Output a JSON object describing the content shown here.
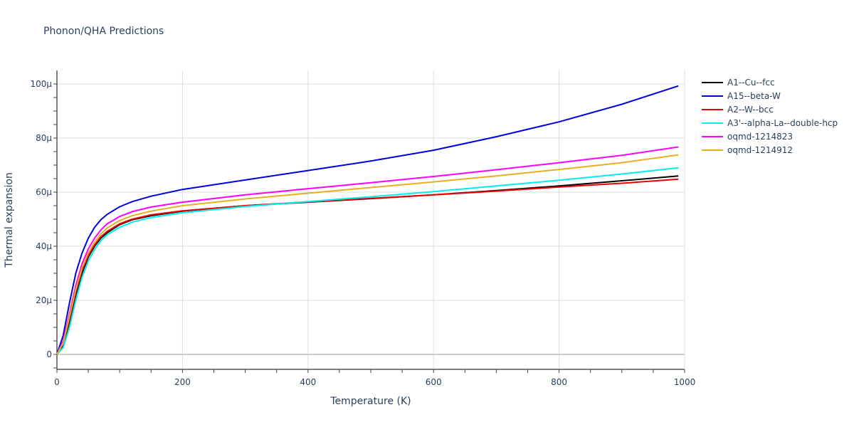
{
  "chart_data": {
    "type": "line",
    "title": "Phonon/QHA Predictions",
    "xlabel": "Temperature (K)",
    "ylabel": "Thermal expansion",
    "xlim": [
      0,
      1000
    ],
    "ylim": [
      -5,
      105
    ],
    "y_unit_suffix": "µ",
    "x_ticks": [
      0,
      200,
      400,
      600,
      800,
      1000
    ],
    "x_tick_labels": [
      "0",
      "200",
      "400",
      "600",
      "800",
      "1000"
    ],
    "y_ticks": [
      0,
      20,
      40,
      60,
      80,
      100
    ],
    "y_tick_labels": [
      "0",
      "20µ",
      "40µ",
      "60µ",
      "80µ",
      "100µ"
    ],
    "grid": true,
    "legend_position": "right",
    "x": [
      0,
      10,
      20,
      30,
      40,
      50,
      60,
      70,
      80,
      100,
      120,
      150,
      200,
      300,
      400,
      500,
      600,
      700,
      800,
      900,
      990
    ],
    "series": [
      {
        "name": "A1--Cu--fcc",
        "color": "#000000",
        "values": [
          0,
          3.5,
          12,
          22,
          30,
          36,
          40,
          43,
          45,
          48,
          49.8,
          51.3,
          53,
          55,
          56.3,
          57.6,
          59,
          60.6,
          62.3,
          64.2,
          66
        ]
      },
      {
        "name": "A15--beta-W",
        "color": "#0000dd",
        "values": [
          0,
          7,
          19,
          30,
          37.5,
          43,
          47,
          49.8,
          51.8,
          54.6,
          56.5,
          58.5,
          61,
          64.5,
          68,
          71.5,
          75.5,
          80.5,
          86,
          92.5,
          99.3
        ]
      },
      {
        "name": "A2--W--bcc",
        "color": "#ee0000",
        "values": [
          0,
          4,
          13,
          23,
          31,
          36.5,
          40.5,
          43.5,
          45.5,
          48.3,
          50,
          51.6,
          53.1,
          55,
          56.4,
          57.7,
          59,
          60.4,
          61.9,
          63.3,
          64.8
        ]
      },
      {
        "name": "A3'--alpha-La--double-hcp",
        "color": "#00eeee",
        "values": [
          0,
          2.5,
          10,
          20,
          28.5,
          34.5,
          38.8,
          42,
          44.3,
          47,
          48.9,
          50.6,
          52.4,
          54.7,
          56.5,
          58.3,
          60.2,
          62.3,
          64.4,
          66.7,
          69
        ]
      },
      {
        "name": "oqmd-1214823",
        "color": "#ff00ff",
        "values": [
          0,
          5,
          15,
          25.5,
          33.5,
          39,
          43,
          46,
          48.3,
          51,
          52.8,
          54.5,
          56.3,
          59,
          61.3,
          63.5,
          65.8,
          68.3,
          70.9,
          73.6,
          76.7
        ]
      },
      {
        "name": "oqmd-1214912",
        "color": "#e6b020",
        "values": [
          0,
          4.2,
          14,
          24,
          32,
          37.5,
          41.5,
          44.5,
          46.8,
          49.5,
          51.3,
          53,
          55,
          57.5,
          59.6,
          61.7,
          63.8,
          66,
          68.4,
          70.9,
          73.8
        ]
      }
    ]
  },
  "legend": {
    "items": [
      {
        "label": "A1--Cu--fcc",
        "color": "#000000"
      },
      {
        "label": "A15--beta-W",
        "color": "#0000dd"
      },
      {
        "label": "A2--W--bcc",
        "color": "#ee0000"
      },
      {
        "label": "A3'--alpha-La--double-hcp",
        "color": "#00eeee"
      },
      {
        "label": "oqmd-1214823",
        "color": "#ff00ff"
      },
      {
        "label": "oqmd-1214912",
        "color": "#e6b020"
      }
    ]
  }
}
